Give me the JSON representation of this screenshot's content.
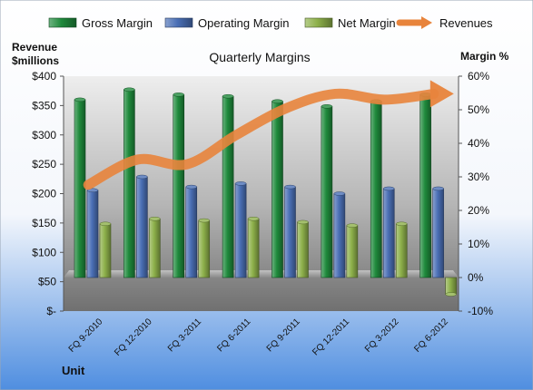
{
  "chart_data": {
    "type": "bar",
    "title": "Quarterly Margins",
    "xlabel": "Unit",
    "ylabel_left": "Revenue $millions",
    "ylabel_left_lines": [
      "Revenue",
      "$millions"
    ],
    "ylabel_right": "Margin %",
    "categories": [
      "FQ 9-2010",
      "FQ 12-2010",
      "FQ 3-2011",
      "FQ 6-2011",
      "FQ 9-2011",
      "FQ 12-2011",
      "FQ 3-2012",
      "FQ 6-2012"
    ],
    "left_axis": {
      "min": 0,
      "max": 400,
      "step": 50,
      "tick_labels": [
        "$-",
        "$50",
        "$100",
        "$150",
        "$200",
        "$250",
        "$300",
        "$350",
        "$400"
      ]
    },
    "right_axis": {
      "min": -10,
      "max": 60,
      "step": 10,
      "tick_labels": [
        "-10%",
        "0%",
        "10%",
        "20%",
        "30%",
        "40%",
        "50%",
        "60%"
      ]
    },
    "series": [
      {
        "name": "Gross Margin",
        "axis": "right",
        "kind": "bar",
        "color": "#1f8a3c",
        "values": [
          53,
          56,
          54.5,
          54,
          52.5,
          51,
          52.5,
          54.5
        ]
      },
      {
        "name": "Operating Margin",
        "axis": "right",
        "kind": "bar",
        "color": "#4a6fb5",
        "values": [
          26,
          30,
          27,
          28,
          27,
          25,
          26.5,
          26.5
        ]
      },
      {
        "name": "Net Margin",
        "axis": "right",
        "kind": "bar",
        "color": "#8db04a",
        "values": [
          16,
          17.5,
          17,
          17.5,
          16.5,
          15.5,
          16,
          -5
        ]
      },
      {
        "name": "Revenues",
        "axis": "left",
        "kind": "line",
        "color": "#e8843c",
        "values": [
          215,
          258,
          250,
          300,
          345,
          370,
          360,
          370
        ]
      }
    ],
    "legend_position": "top",
    "grid": false
  }
}
